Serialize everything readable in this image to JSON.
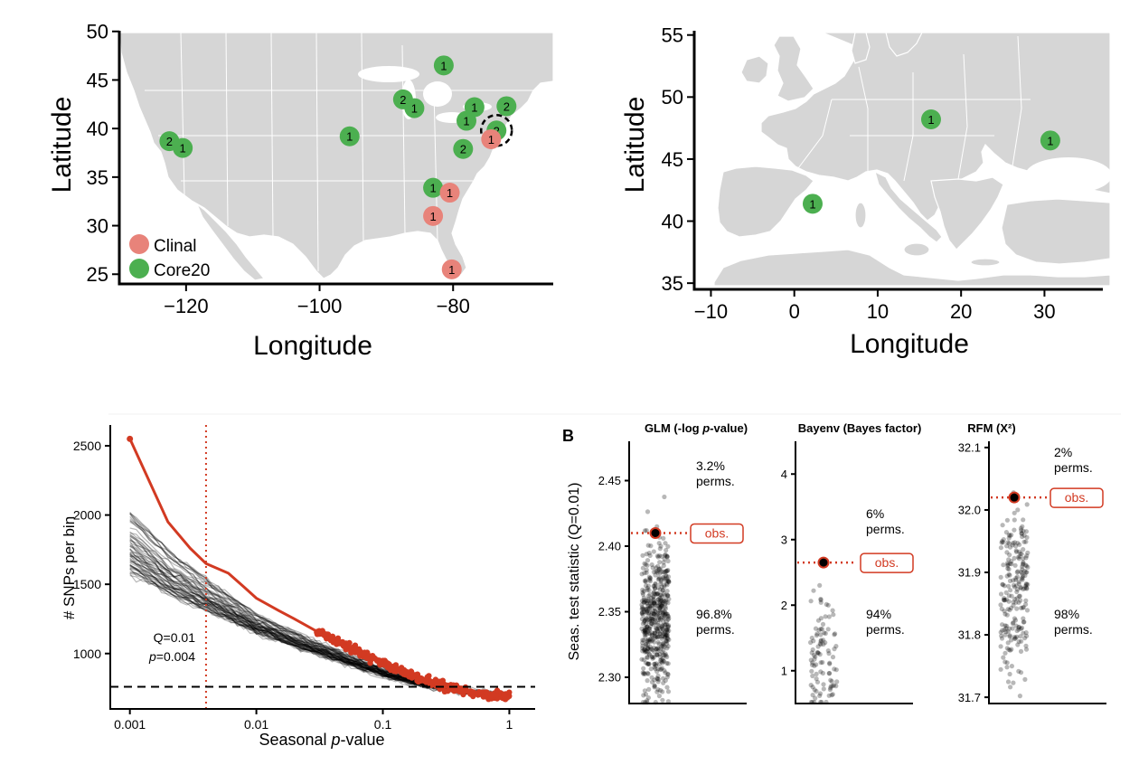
{
  "colors": {
    "clinal": "#e8837a",
    "core20": "#4caf50",
    "red": "#d23a22",
    "land": "#d6d6d6"
  },
  "chart_data": [
    {
      "type": "scatter",
      "panel": "north-america-map",
      "xlabel": "Longitude",
      "ylabel": "Latitude",
      "xlim": [
        -130,
        -65
      ],
      "ylim": [
        24,
        51
      ],
      "xticks": [
        "−120",
        "−100",
        "−80"
      ],
      "xtick_values": [
        -120,
        -100,
        -80
      ],
      "yticks": [
        "25",
        "30",
        "35",
        "40",
        "45",
        "50"
      ],
      "ytick_values": [
        25,
        30,
        35,
        40,
        45,
        50
      ],
      "legend": [
        {
          "name": "Clinal"
        },
        {
          "name": "Core20"
        }
      ],
      "legend_position": "bottom-left",
      "points": [
        {
          "lon": -122.5,
          "lat": 38.7,
          "count": "2",
          "group": "Core20"
        },
        {
          "lon": -120.5,
          "lat": 38.0,
          "count": "1",
          "group": "Core20"
        },
        {
          "lon": -95.5,
          "lat": 39.2,
          "count": "1",
          "group": "Core20"
        },
        {
          "lon": -87.5,
          "lat": 43.0,
          "count": "2",
          "group": "Core20"
        },
        {
          "lon": -85.8,
          "lat": 42.1,
          "count": "1",
          "group": "Core20"
        },
        {
          "lon": -81.4,
          "lat": 46.5,
          "count": "1",
          "group": "Core20"
        },
        {
          "lon": -76.8,
          "lat": 42.2,
          "count": "1",
          "group": "Core20"
        },
        {
          "lon": -72.0,
          "lat": 42.3,
          "count": "2",
          "group": "Core20"
        },
        {
          "lon": -78.0,
          "lat": 40.8,
          "count": "1",
          "group": "Core20"
        },
        {
          "lon": -78.5,
          "lat": 37.9,
          "count": "2",
          "group": "Core20"
        },
        {
          "lon": -73.5,
          "lat": 39.8,
          "count": "2",
          "group": "Core20",
          "highlight": true
        },
        {
          "lon": -74.3,
          "lat": 38.9,
          "count": "1",
          "group": "Clinal"
        },
        {
          "lon": -83.0,
          "lat": 33.9,
          "count": "1",
          "group": "Core20"
        },
        {
          "lon": -80.5,
          "lat": 33.4,
          "count": "1",
          "group": "Clinal"
        },
        {
          "lon": -83.0,
          "lat": 31.0,
          "count": "1",
          "group": "Clinal"
        },
        {
          "lon": -80.2,
          "lat": 25.5,
          "count": "1",
          "group": "Clinal"
        }
      ]
    },
    {
      "type": "scatter",
      "panel": "europe-map",
      "xlabel": "Longitude",
      "ylabel": "Latitude",
      "xlim": [
        -12,
        37
      ],
      "ylim": [
        34.5,
        56
      ],
      "xticks": [
        "−10",
        "0",
        "10",
        "20",
        "30"
      ],
      "xtick_values": [
        -10,
        0,
        10,
        20,
        30
      ],
      "yticks": [
        "35",
        "40",
        "45",
        "50",
        "55"
      ],
      "ytick_values": [
        35,
        40,
        45,
        50,
        55
      ],
      "points": [
        {
          "lon": 16.4,
          "lat": 48.2,
          "count": "1",
          "group": "Core20"
        },
        {
          "lon": 30.7,
          "lat": 46.5,
          "count": "1",
          "group": "Core20"
        },
        {
          "lon": 2.2,
          "lat": 41.4,
          "count": "1",
          "group": "Core20"
        }
      ]
    },
    {
      "type": "line",
      "panel": "snps-per-bin",
      "xlabel_pre": "Seasonal ",
      "xlabel_it": "p",
      "xlabel_post": "-value",
      "ylabel": "# SNPs per bin",
      "xscale": "log",
      "xlim": [
        0.0007,
        1.6
      ],
      "ylim": [
        600,
        2650
      ],
      "xticks": [
        "0.001",
        "0.01",
        "0.1",
        "1"
      ],
      "xtick_values": [
        0.001,
        0.01,
        0.1,
        1
      ],
      "yticks": [
        "1000",
        "1500",
        "2000",
        "2500"
      ],
      "ytick_values": [
        1000,
        1500,
        2000,
        2500
      ],
      "vline_x": 0.004,
      "hline_y": 760,
      "annotation_q": "Q=0.01",
      "annotation_p_it": "p",
      "annotation_p_rest": "=0.004",
      "observed": {
        "x": [
          0.001,
          0.002,
          0.003,
          0.004,
          0.006,
          0.008,
          0.01,
          0.015,
          0.02,
          0.03,
          0.05,
          0.07,
          0.1,
          0.15,
          0.2,
          0.3,
          0.5,
          0.7,
          1.0
        ],
        "y": [
          2550,
          1950,
          1760,
          1650,
          1580,
          1480,
          1400,
          1310,
          1250,
          1160,
          1060,
          990,
          930,
          860,
          820,
          770,
          720,
          700,
          690
        ]
      },
      "permutation_envelope": {
        "x": [
          0.001,
          0.002,
          0.004,
          0.01,
          0.02,
          0.05,
          0.1,
          0.2,
          0.5,
          1.0
        ],
        "y_low": [
          1580,
          1430,
          1310,
          1150,
          1050,
          930,
          840,
          770,
          710,
          680
        ],
        "y_high": [
          2020,
          1740,
          1540,
          1280,
          1150,
          1000,
          890,
          800,
          730,
          700
        ]
      }
    },
    {
      "type": "scatter",
      "panel": "glm",
      "panel_letter": "B",
      "title_pre": "GLM (-log ",
      "title_it": "p",
      "title_post": "-value)",
      "ylabel": "Seas. test statistic (Q=0.01)",
      "ylim": [
        2.28,
        2.48
      ],
      "yticks": [
        "2.30",
        "2.35",
        "2.40",
        "2.45"
      ],
      "ytick_values": [
        2.3,
        2.35,
        2.4,
        2.45
      ],
      "observed": 2.41,
      "perm_center": 2.345,
      "perm_sd": 0.028,
      "perm_n": 500,
      "obs_label": "obs.",
      "upper_label": [
        "3.2%",
        "perms."
      ],
      "lower_label": [
        "96.8%",
        "perms."
      ]
    },
    {
      "type": "scatter",
      "panel": "bayenv",
      "title": "Bayenv (Bayes factor)",
      "ylim": [
        0.5,
        4.5
      ],
      "yticks": [
        "1",
        "2",
        "3",
        "4"
      ],
      "ytick_values": [
        1,
        2,
        3,
        4
      ],
      "observed": 2.65,
      "perm_center": 1.25,
      "perm_sd": 0.45,
      "perm_n": 100,
      "obs_label": "obs.",
      "upper_label": [
        "6%",
        "perms."
      ],
      "lower_label": [
        "94%",
        "perms."
      ]
    },
    {
      "type": "scatter",
      "panel": "rfm",
      "title": "RFM (X²)",
      "ylim": [
        31.69,
        32.11
      ],
      "yticks": [
        "31.7",
        "31.8",
        "31.9",
        "32.0",
        "32.1"
      ],
      "ytick_values": [
        31.7,
        31.8,
        31.9,
        32.0,
        32.1
      ],
      "observed": 32.02,
      "perm_center": 31.87,
      "perm_sd": 0.065,
      "perm_n": 220,
      "obs_label": "obs.",
      "upper_label": [
        "2%",
        "perms."
      ],
      "lower_label": [
        "98%",
        "perms."
      ]
    }
  ]
}
